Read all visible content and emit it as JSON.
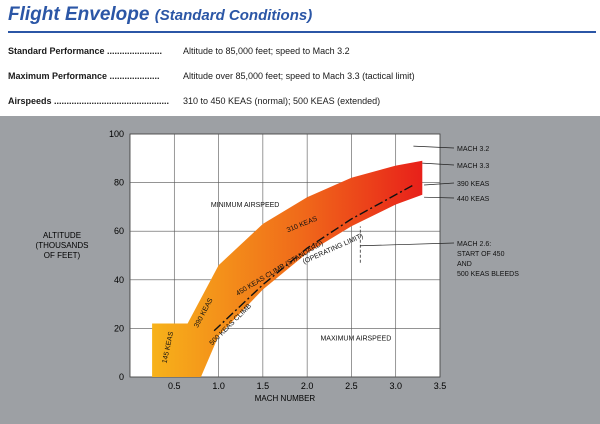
{
  "header": {
    "title": "Flight Envelope",
    "subtitle": "(Standard Conditions)"
  },
  "specs": [
    {
      "label": "Standard Performance ......................",
      "value": "Altitude to 85,000 feet; speed to Mach 3.2"
    },
    {
      "label": "Maximum Performance ....................",
      "value": "Altitude over 85,000 feet; speed to Mach 3.3 (tactical limit)"
    },
    {
      "label": "Airspeeds ..............................................",
      "value": "310 to 450 KEAS (normal); 500 KEAS (extended)"
    }
  ],
  "colors": {
    "panel": "#9da0a4",
    "plot_bg": "#ffffff",
    "title": "#2b56a6",
    "band_low": "#f7b21a",
    "band_high": "#e8201a"
  },
  "chart_data": {
    "type": "area",
    "xlabel": "MACH NUMBER",
    "ylabel": "ALTITUDE (THOUSANDS OF FEET)",
    "xlim": [
      0,
      3.5
    ],
    "ylim": [
      0,
      100
    ],
    "xticks": [
      "0.5",
      "1.0",
      "1.5",
      "2.0",
      "2.5",
      "3.0",
      "3.5"
    ],
    "yticks": [
      "0",
      "20",
      "40",
      "60",
      "80",
      "100"
    ],
    "grid": true,
    "envelope_upper": [
      [
        0.25,
        22
      ],
      [
        0.65,
        22
      ],
      [
        1.0,
        46
      ],
      [
        1.5,
        63
      ],
      [
        2.0,
        74
      ],
      [
        2.5,
        82
      ],
      [
        3.0,
        87
      ],
      [
        3.3,
        89
      ]
    ],
    "envelope_lower": [
      [
        0.25,
        0
      ],
      [
        0.4,
        0
      ],
      [
        0.8,
        0
      ],
      [
        1.0,
        17
      ],
      [
        1.5,
        36
      ],
      [
        2.0,
        51
      ],
      [
        2.5,
        62
      ],
      [
        3.0,
        71
      ],
      [
        3.3,
        75
      ]
    ],
    "operating_limit": [
      [
        0.95,
        19
      ],
      [
        1.5,
        38
      ],
      [
        2.0,
        53
      ],
      [
        2.5,
        65
      ],
      [
        2.9,
        73
      ],
      [
        3.2,
        79
      ]
    ],
    "mach26_marker": {
      "x": 2.6,
      "y_from": 47,
      "y_to": 62
    },
    "annotations": [
      {
        "text": "MINIMUM AIRSPEED",
        "x": 1.3,
        "y": 70
      },
      {
        "text": "MAXIMUM AIRSPEED",
        "x": 2.55,
        "y": 15
      },
      {
        "text": "145 KEAS",
        "x": 0.45,
        "y": 12,
        "angle": -78
      },
      {
        "text": "390 KEAS",
        "x": 0.85,
        "y": 26,
        "angle": -62
      },
      {
        "text": "500 KEAS CLIMB",
        "x": 1.15,
        "y": 21,
        "angle": -45
      },
      {
        "text": "450 KEAS CLIMB (STANDARD)",
        "x": 1.7,
        "y": 44,
        "angle": -31
      },
      {
        "text": "310 KEAS",
        "x": 1.95,
        "y": 62,
        "angle": -22
      },
      {
        "text": "(OPERATING LIMIT)",
        "x": 2.3,
        "y": 52,
        "angle": -24
      }
    ],
    "callouts": [
      {
        "text": "MACH 3.2",
        "target": [
          3.2,
          95
        ]
      },
      {
        "text": "MACH 3.3",
        "target": [
          3.3,
          88
        ]
      },
      {
        "text": "390 KEAS",
        "target": [
          3.32,
          79
        ]
      },
      {
        "text": "440 KEAS",
        "target": [
          3.32,
          74
        ]
      },
      {
        "text": "MACH 2.6:",
        "line2": "START OF 450",
        "line3": "AND",
        "line4": "500 KEAS BLEEDS",
        "target": [
          2.6,
          54
        ]
      }
    ]
  }
}
